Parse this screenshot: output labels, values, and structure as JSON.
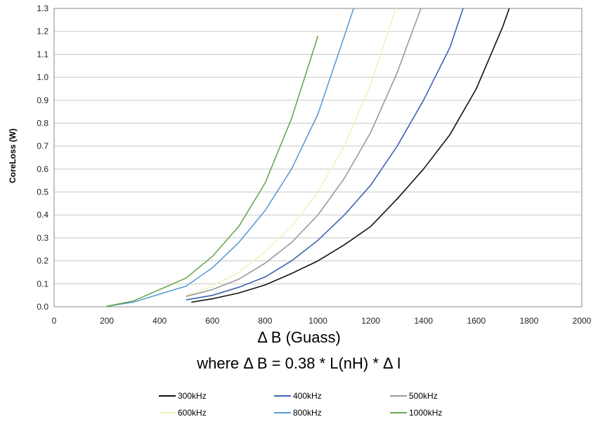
{
  "chart_data": {
    "type": "line",
    "title": "",
    "xlabel": "Δ B (Guass)",
    "xlabel_formula": "where  Δ B = 0.38 * L(nH) *  Δ I",
    "ylabel": "CoreLoss (W)",
    "xlim": [
      0,
      2000
    ],
    "ylim": [
      0,
      1.3
    ],
    "xticks": [
      "0",
      "200",
      "400",
      "600",
      "800",
      "1000",
      "1200",
      "1400",
      "1600",
      "1800",
      "2000"
    ],
    "yticks": [
      "0.0",
      "0.1",
      "0.2",
      "0.3",
      "0.4",
      "0.5",
      "0.6",
      "0.7",
      "0.8",
      "0.9",
      "1.0",
      "1.1",
      "1.2",
      "1.3"
    ],
    "grid": "horizontal",
    "legend_position": "bottom",
    "series": [
      {
        "name": "300kHz",
        "color": "#111111",
        "x": [
          520,
          600,
          700,
          800,
          900,
          1000,
          1100,
          1200,
          1300,
          1400,
          1500,
          1600,
          1700,
          1725
        ],
        "y": [
          0.02,
          0.035,
          0.06,
          0.095,
          0.145,
          0.2,
          0.27,
          0.35,
          0.47,
          0.6,
          0.75,
          0.95,
          1.22,
          1.3
        ]
      },
      {
        "name": "400kHz",
        "color": "#3d62b0",
        "x": [
          500,
          600,
          700,
          800,
          900,
          1000,
          1100,
          1200,
          1300,
          1400,
          1500,
          1550
        ],
        "y": [
          0.03,
          0.05,
          0.085,
          0.13,
          0.2,
          0.29,
          0.4,
          0.53,
          0.7,
          0.9,
          1.13,
          1.3
        ]
      },
      {
        "name": "500kHz",
        "color": "#999999",
        "x": [
          500,
          600,
          700,
          800,
          900,
          1000,
          1100,
          1200,
          1300,
          1390
        ],
        "y": [
          0.045,
          0.075,
          0.12,
          0.19,
          0.28,
          0.4,
          0.56,
          0.76,
          1.02,
          1.3
        ]
      },
      {
        "name": "600kHz",
        "color": "#f2f2bf",
        "x": [
          500,
          600,
          700,
          800,
          900,
          1000,
          1100,
          1200,
          1295
        ],
        "y": [
          0.05,
          0.09,
          0.15,
          0.24,
          0.35,
          0.5,
          0.7,
          0.97,
          1.3
        ]
      },
      {
        "name": "800kHz",
        "color": "#5b9bd5",
        "x": [
          200,
          300,
          400,
          500,
          600,
          700,
          800,
          900,
          1000,
          1100,
          1135
        ],
        "y": [
          0.002,
          0.02,
          0.055,
          0.09,
          0.17,
          0.28,
          0.42,
          0.6,
          0.84,
          1.18,
          1.3
        ]
      },
      {
        "name": "1000kHz",
        "color": "#6aa84f",
        "x": [
          200,
          300,
          400,
          500,
          600,
          700,
          800,
          900,
          1000
        ],
        "y": [
          0.002,
          0.025,
          0.075,
          0.125,
          0.22,
          0.35,
          0.54,
          0.82,
          1.18
        ]
      }
    ]
  }
}
